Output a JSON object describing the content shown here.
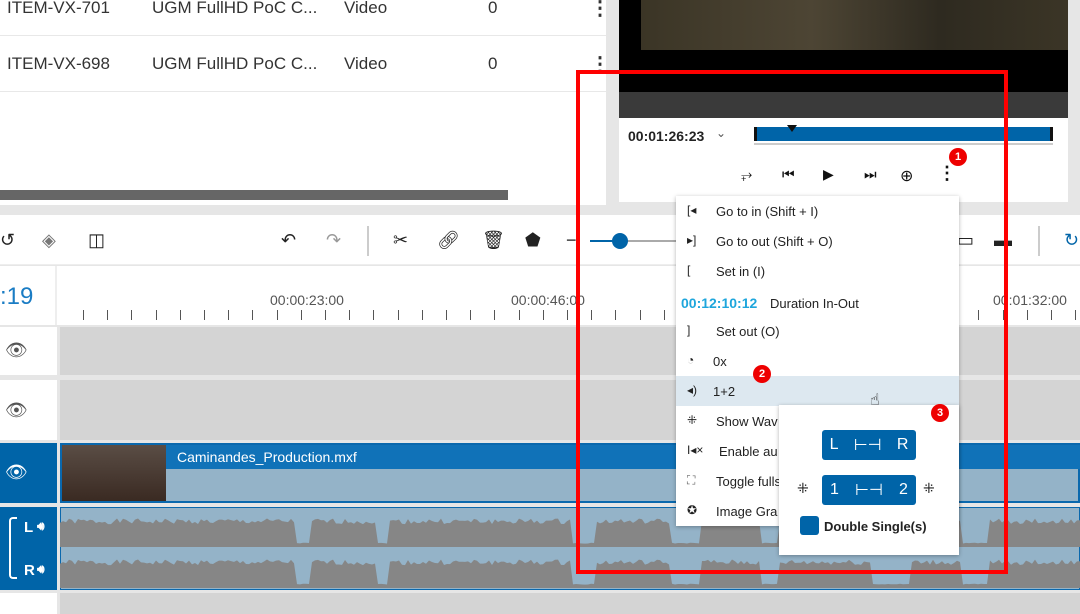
{
  "table": {
    "rows": [
      {
        "id": "ITEM-VX-701",
        "title": "UGM FullHD PoC C...",
        "type": "Video",
        "count": "0"
      },
      {
        "id": "ITEM-VX-698",
        "title": "UGM FullHD PoC C...",
        "type": "Video",
        "count": "0"
      }
    ]
  },
  "player": {
    "timecode": "00:01:26:23",
    "scrub_progress": 0.12
  },
  "timeline": {
    "current_tc_partial": ":19",
    "ruler_labels": [
      "00:00:23:00",
      "00:00:46:00",
      "00:01:32:00"
    ],
    "clip_name": "Caminandes_Production.mxf",
    "audio_channels": [
      "L",
      "R"
    ],
    "zoom_level": 0.3
  },
  "menu": {
    "items": [
      {
        "icon": "go-to-in-icon",
        "label": "Go to in (Shift + I)"
      },
      {
        "icon": "go-to-out-icon",
        "label": "Go to out (Shift + O)"
      },
      {
        "icon": "set-in-icon",
        "label": "Set in (I)"
      },
      {
        "icon": "",
        "label": "Duration In-Out",
        "value": "00:12:10:12"
      },
      {
        "icon": "set-out-icon",
        "label": "Set out (O)"
      },
      {
        "icon": "speed-icon",
        "label": "0x"
      },
      {
        "icon": "audio-icon",
        "label": "1+2"
      },
      {
        "icon": "waveform-icon",
        "label": "Show Wav"
      },
      {
        "icon": "audio-mute-icon",
        "label": "Enable au"
      },
      {
        "icon": "fullscreen-icon",
        "label": "Toggle fulls"
      },
      {
        "icon": "camera-icon",
        "label": "Image Gra"
      }
    ]
  },
  "submenu": {
    "pair1": [
      "L",
      "R"
    ],
    "pair2": [
      "1",
      "2"
    ],
    "checkbox_label": "Double Single(s)"
  },
  "badges": [
    "1",
    "2",
    "3"
  ],
  "colors": {
    "accent": "#0064a8",
    "timecode": "#1ea6dc",
    "highlight": "#f00"
  }
}
